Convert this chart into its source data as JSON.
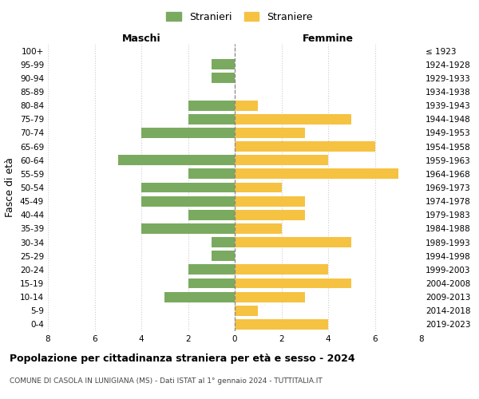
{
  "age_groups": [
    "100+",
    "95-99",
    "90-94",
    "85-89",
    "80-84",
    "75-79",
    "70-74",
    "65-69",
    "60-64",
    "55-59",
    "50-54",
    "45-49",
    "40-44",
    "35-39",
    "30-34",
    "25-29",
    "20-24",
    "15-19",
    "10-14",
    "5-9",
    "0-4"
  ],
  "birth_years": [
    "≤ 1923",
    "1924-1928",
    "1929-1933",
    "1934-1938",
    "1939-1943",
    "1944-1948",
    "1949-1953",
    "1954-1958",
    "1959-1963",
    "1964-1968",
    "1969-1973",
    "1974-1978",
    "1979-1983",
    "1984-1988",
    "1989-1993",
    "1994-1998",
    "1999-2003",
    "2004-2008",
    "2009-2013",
    "2014-2018",
    "2019-2023"
  ],
  "males": [
    0,
    1,
    1,
    0,
    2,
    2,
    4,
    0,
    5,
    2,
    4,
    4,
    2,
    4,
    1,
    1,
    2,
    2,
    3,
    0,
    0
  ],
  "females": [
    0,
    0,
    0,
    0,
    1,
    5,
    3,
    6,
    4,
    7,
    2,
    3,
    3,
    2,
    5,
    0,
    4,
    5,
    3,
    1,
    4
  ],
  "male_color": "#7aaa5f",
  "female_color": "#f5c242",
  "grid_color": "#cccccc",
  "title": "Popolazione per cittadinanza straniera per età e sesso - 2024",
  "subtitle": "COMUNE DI CASOLA IN LUNIGIANA (MS) - Dati ISTAT al 1° gennaio 2024 - TUTTITALIA.IT",
  "xlabel_left": "Maschi",
  "xlabel_right": "Femmine",
  "ylabel": "Fasce di età",
  "legend_stranieri": "Stranieri",
  "legend_straniere": "Straniere",
  "xlim": 8,
  "tick_fontsize": 7.5,
  "label_fontsize": 9,
  "title_fontsize": 9,
  "subtitle_fontsize": 6.5
}
